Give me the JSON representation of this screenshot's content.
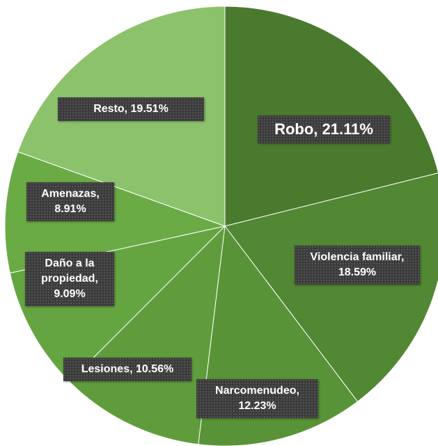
{
  "chart_data": {
    "type": "pie",
    "categories": [
      "Robo",
      "Violencia familiar",
      "Narcomenudeo",
      "Lesiones",
      "Daño a la propiedad",
      "Amenazas",
      "Resto"
    ],
    "values": [
      21.11,
      18.59,
      12.23,
      10.56,
      9.09,
      8.91,
      19.51
    ],
    "value_labels": [
      "Robo, 21.11%",
      "Violencia familiar, 18.59%",
      "Narcomenudeo, 12.23%",
      "Lesiones, 10.56%",
      "Daño a la propiedad, 9.09%",
      "Amenazas, 8.91%",
      "Resto, 19.51%"
    ],
    "colors": [
      "#4a7a2d",
      "#528733",
      "#599337",
      "#5f9d3c",
      "#65a541",
      "#6aab46",
      "#8cc26c"
    ]
  }
}
